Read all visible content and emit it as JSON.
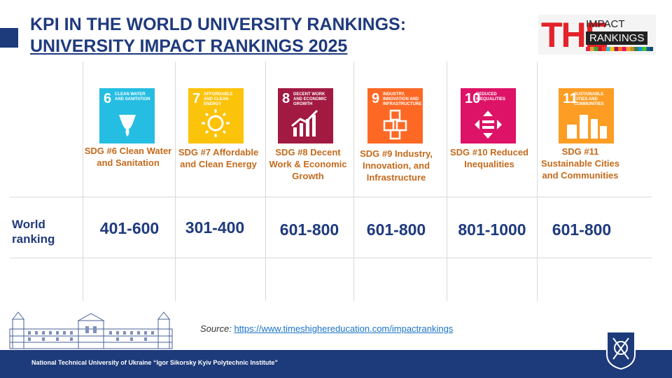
{
  "title": {
    "line1": "KPI IN THE WORLD UNIVERSITY RANKINGS:",
    "line2": "UNIVERSITY IMPACT RANKINGS 2025"
  },
  "logo": {
    "the": "THE",
    "impact": "IMPACT",
    "rankings": "RANKINGS"
  },
  "row_label": "World ranking",
  "sdgs": [
    {
      "number": "6",
      "icon_text": "CLEAN WATER AND SANITATION",
      "color": "#26bde2",
      "label": "SDG #6 Clean Water and Sanitation",
      "rank": "401-600",
      "icon": "water-drop-icon"
    },
    {
      "number": "7",
      "icon_text": "AFFORDABLE AND CLEAN ENERGY",
      "color": "#fcc30b",
      "label": "SDG #7 Affordable and Clean Energy",
      "rank": "301-400",
      "icon": "sun-power-icon"
    },
    {
      "number": "8",
      "icon_text": "DECENT WORK AND ECONOMIC GROWTH",
      "color": "#a21942",
      "label": "SDG #8 Decent Work & Economic Growth",
      "rank": "601-800",
      "icon": "growth-chart-icon"
    },
    {
      "number": "9",
      "icon_text": "INDUSTRY, INNOVATION AND INFRASTRUCTURE",
      "color": "#fd6925",
      "label": "SDG #9 Industry, Innovation, and Infrastructure",
      "rank": "601-800",
      "icon": "cubes-icon"
    },
    {
      "number": "10",
      "icon_text": "REDUCED INEQUALITIES",
      "color": "#dd1367",
      "label": "SDG #10 Reduced Inequalities",
      "rank": "801-1000",
      "icon": "equality-arrows-icon"
    },
    {
      "number": "11",
      "icon_text": "SUSTAINABLE CITIES AND COMMUNITIES",
      "color": "#fd9d24",
      "label": "SDG #11 Sustainable Cities and Communities",
      "rank": "601-800",
      "icon": "city-icon"
    }
  ],
  "source": {
    "prefix": "Source:",
    "url": "https://www.timeshighereducation.com/impactrankings"
  },
  "footer": "National Technical University of Ukraine “Igor Sikorsky Kyiv Polytechnic Institute”"
}
